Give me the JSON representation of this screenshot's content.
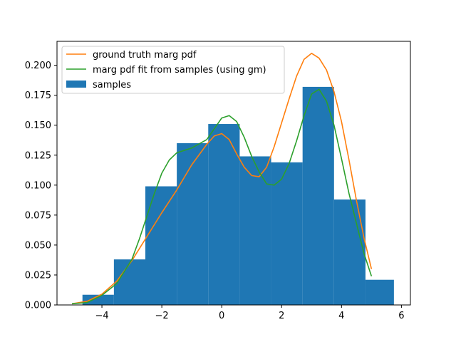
{
  "chart_data": {
    "type": "histogram-with-lines",
    "xlim": [
      -5.5,
      6.3
    ],
    "ylim": [
      0,
      0.22
    ],
    "xticks": [
      -4,
      -2,
      0,
      2,
      4,
      6
    ],
    "yticks": [
      0.0,
      0.025,
      0.05,
      0.075,
      0.1,
      0.125,
      0.15,
      0.175,
      0.2
    ],
    "xtick_labels": [
      "−4",
      "−2",
      "0",
      "2",
      "4",
      "6"
    ],
    "ytick_labels": [
      "0.000",
      "0.025",
      "0.050",
      "0.075",
      "0.100",
      "0.125",
      "0.150",
      "0.175",
      "0.200"
    ],
    "histogram": {
      "name": "samples",
      "color": "#1f77b4",
      "bin_edges": [
        -4.65,
        -3.6,
        -2.55,
        -1.5,
        -0.45,
        0.6,
        1.65,
        2.7,
        3.75,
        4.8,
        5.75
      ],
      "values": [
        0.0085,
        0.038,
        0.099,
        0.135,
        0.151,
        0.124,
        0.119,
        0.182,
        0.088,
        0.021
      ]
    },
    "series": [
      {
        "name": "ground truth marg pdf",
        "color": "#ff7f0e",
        "x": [
          -5.0,
          -4.5,
          -4.0,
          -3.5,
          -3.0,
          -2.5,
          -2.0,
          -1.5,
          -1.0,
          -0.5,
          -0.25,
          0.0,
          0.25,
          0.5,
          0.75,
          1.0,
          1.25,
          1.5,
          1.75,
          2.0,
          2.25,
          2.5,
          2.75,
          3.0,
          3.25,
          3.5,
          3.75,
          4.0,
          4.25,
          4.5,
          4.75,
          5.0
        ],
        "y": [
          0.001,
          0.003,
          0.009,
          0.02,
          0.037,
          0.057,
          0.077,
          0.096,
          0.117,
          0.134,
          0.141,
          0.143,
          0.138,
          0.126,
          0.115,
          0.108,
          0.107,
          0.115,
          0.132,
          0.152,
          0.172,
          0.191,
          0.205,
          0.21,
          0.206,
          0.196,
          0.178,
          0.153,
          0.121,
          0.087,
          0.056,
          0.03
        ]
      },
      {
        "name": "marg pdf fit from samples (using gm)",
        "color": "#2ca02c",
        "x": [
          -5.0,
          -4.5,
          -4.0,
          -3.5,
          -3.0,
          -2.75,
          -2.5,
          -2.25,
          -2.0,
          -1.75,
          -1.5,
          -1.0,
          -0.5,
          -0.25,
          0.0,
          0.25,
          0.5,
          0.75,
          1.0,
          1.25,
          1.5,
          1.75,
          2.0,
          2.25,
          2.5,
          2.75,
          3.0,
          3.25,
          3.5,
          3.75,
          4.0,
          4.25,
          4.5,
          4.75,
          5.0
        ],
        "y": [
          0.001,
          0.002,
          0.008,
          0.018,
          0.038,
          0.055,
          0.074,
          0.093,
          0.11,
          0.121,
          0.127,
          0.131,
          0.138,
          0.147,
          0.156,
          0.158,
          0.153,
          0.14,
          0.124,
          0.111,
          0.101,
          0.1,
          0.105,
          0.118,
          0.137,
          0.158,
          0.176,
          0.18,
          0.17,
          0.15,
          0.122,
          0.093,
          0.068,
          0.043,
          0.024
        ]
      }
    ],
    "legend": {
      "placement": "upper-left",
      "entries": [
        "ground truth marg pdf",
        "marg pdf fit from samples (using gm)",
        "samples"
      ]
    },
    "title": "",
    "xlabel": "",
    "ylabel": "",
    "grid": false
  }
}
